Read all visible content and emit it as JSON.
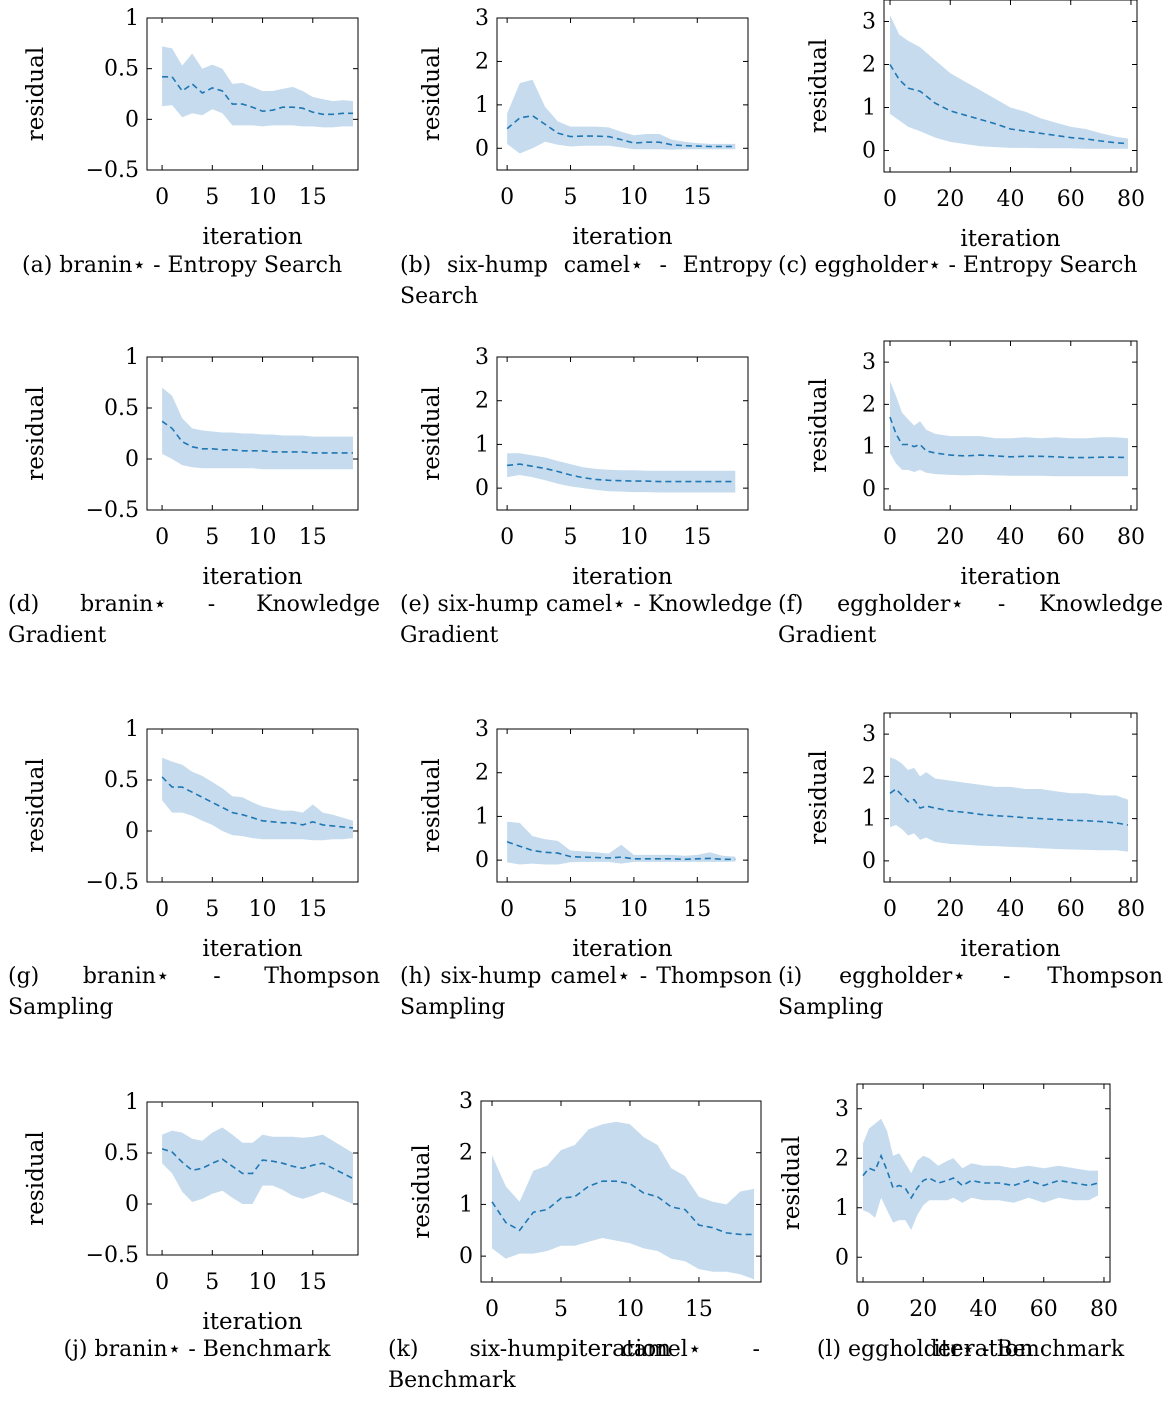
{
  "style": {
    "band_color": "#c6dcee",
    "line_color": "#1f77b4"
  },
  "chart_data": [
    {
      "id": "a",
      "type": "line",
      "caption": "(a) branin⋆ - Entropy Search",
      "xlabel": "iteration",
      "ylabel": "residual",
      "xlim": [
        -1.5,
        19.5
      ],
      "ylim": [
        -0.5,
        1
      ],
      "xticks": [
        0,
        5,
        10,
        15
      ],
      "yticks": [
        -0.5,
        0,
        0.5,
        1
      ],
      "ytick_labels": [
        "−0.5",
        "0",
        "0.5",
        "1"
      ],
      "xtick_labels": [
        "0",
        "5",
        "10",
        "15"
      ],
      "mean": [
        0.42,
        0.42,
        0.28,
        0.35,
        0.26,
        0.31,
        0.28,
        0.15,
        0.15,
        0.12,
        0.08,
        0.09,
        0.12,
        0.12,
        0.11,
        0.07,
        0.05,
        0.05,
        0.06,
        0.06
      ],
      "upper": [
        0.72,
        0.7,
        0.53,
        0.65,
        0.5,
        0.54,
        0.5,
        0.35,
        0.36,
        0.32,
        0.28,
        0.28,
        0.3,
        0.32,
        0.28,
        0.22,
        0.2,
        0.18,
        0.19,
        0.18
      ],
      "lower": [
        0.13,
        0.14,
        0.02,
        0.06,
        0.04,
        0.1,
        0.06,
        -0.06,
        -0.06,
        -0.06,
        -0.07,
        -0.06,
        -0.06,
        -0.06,
        -0.07,
        -0.07,
        -0.08,
        -0.08,
        -0.07,
        -0.07
      ]
    },
    {
      "id": "b",
      "type": "line",
      "caption": "(b) six-hump camel⋆ - Entropy Search",
      "xlabel": "iteration",
      "ylabel": "residual",
      "xlim": [
        -0.8,
        19
      ],
      "ylim": [
        -0.5,
        3
      ],
      "xticks": [
        0,
        5,
        10,
        15
      ],
      "yticks": [
        0,
        1,
        2,
        3
      ],
      "ytick_labels": [
        "0",
        "1",
        "2",
        "3"
      ],
      "xtick_labels": [
        "0",
        "5",
        "10",
        "15"
      ],
      "mean": [
        0.45,
        0.7,
        0.75,
        0.55,
        0.35,
        0.27,
        0.28,
        0.28,
        0.27,
        0.2,
        0.12,
        0.14,
        0.14,
        0.08,
        0.06,
        0.05,
        0.04,
        0.04,
        0.04
      ],
      "upper": [
        0.8,
        1.5,
        1.58,
        0.95,
        0.62,
        0.5,
        0.5,
        0.5,
        0.48,
        0.38,
        0.3,
        0.33,
        0.33,
        0.2,
        0.15,
        0.12,
        0.1,
        0.1,
        0.1
      ],
      "lower": [
        0.1,
        -0.12,
        0.0,
        0.15,
        0.08,
        0.04,
        0.06,
        0.06,
        0.06,
        0.02,
        -0.02,
        -0.02,
        -0.02,
        -0.03,
        -0.02,
        -0.02,
        -0.02,
        -0.02,
        -0.02
      ]
    },
    {
      "id": "c",
      "type": "line",
      "caption": "(c) eggholder⋆ - Entropy Search",
      "xlabel": "iteration",
      "ylabel": "residual",
      "xlim": [
        -2,
        82
      ],
      "ylim": [
        -0.5,
        3.5
      ],
      "xticks": [
        0,
        20,
        40,
        60,
        80
      ],
      "yticks": [
        0,
        1,
        2,
        3
      ],
      "ytick_labels": [
        "0",
        "1",
        "2",
        "3"
      ],
      "xtick_labels": [
        "0",
        "20",
        "40",
        "60",
        "80"
      ],
      "x": [
        0,
        3,
        6,
        10,
        15,
        20,
        25,
        30,
        35,
        40,
        45,
        50,
        55,
        60,
        65,
        70,
        75,
        79
      ],
      "mean": [
        2.0,
        1.65,
        1.45,
        1.38,
        1.1,
        0.92,
        0.82,
        0.72,
        0.62,
        0.5,
        0.45,
        0.4,
        0.35,
        0.3,
        0.27,
        0.22,
        0.18,
        0.16
      ],
      "upper": [
        3.15,
        2.7,
        2.55,
        2.4,
        2.1,
        1.8,
        1.6,
        1.4,
        1.2,
        1.0,
        0.9,
        0.75,
        0.65,
        0.55,
        0.5,
        0.4,
        0.32,
        0.28
      ],
      "lower": [
        0.85,
        0.7,
        0.55,
        0.45,
        0.3,
        0.2,
        0.15,
        0.1,
        0.08,
        0.06,
        0.06,
        0.05,
        0.05,
        0.05,
        0.04,
        0.04,
        0.04,
        0.04
      ]
    },
    {
      "id": "d",
      "type": "line",
      "caption": "(d) branin⋆ - Knowledge Gradient",
      "xlabel": "iteration",
      "ylabel": "residual",
      "xlim": [
        -1.5,
        19.5
      ],
      "ylim": [
        -0.5,
        1
      ],
      "xticks": [
        0,
        5,
        10,
        15
      ],
      "yticks": [
        -0.5,
        0,
        0.5,
        1
      ],
      "ytick_labels": [
        "−0.5",
        "0",
        "0.5",
        "1"
      ],
      "xtick_labels": [
        "0",
        "5",
        "10",
        "15"
      ],
      "mean": [
        0.37,
        0.3,
        0.17,
        0.12,
        0.1,
        0.1,
        0.09,
        0.09,
        0.08,
        0.08,
        0.08,
        0.07,
        0.07,
        0.07,
        0.07,
        0.06,
        0.06,
        0.06,
        0.06,
        0.06
      ],
      "upper": [
        0.7,
        0.62,
        0.4,
        0.3,
        0.28,
        0.27,
        0.26,
        0.26,
        0.25,
        0.25,
        0.24,
        0.24,
        0.23,
        0.23,
        0.23,
        0.22,
        0.22,
        0.22,
        0.22,
        0.22
      ],
      "lower": [
        0.05,
        0.0,
        -0.06,
        -0.08,
        -0.09,
        -0.09,
        -0.09,
        -0.09,
        -0.09,
        -0.09,
        -0.1,
        -0.1,
        -0.1,
        -0.1,
        -0.1,
        -0.1,
        -0.1,
        -0.1,
        -0.1,
        -0.1
      ]
    },
    {
      "id": "e",
      "type": "line",
      "caption": "(e) six-hump camel⋆ - Knowledge Gradient",
      "xlabel": "iteration",
      "ylabel": "residual",
      "xlim": [
        -0.8,
        19
      ],
      "ylim": [
        -0.5,
        3
      ],
      "xticks": [
        0,
        5,
        10,
        15
      ],
      "yticks": [
        0,
        1,
        2,
        3
      ],
      "ytick_labels": [
        "0",
        "1",
        "2",
        "3"
      ],
      "xtick_labels": [
        "0",
        "5",
        "10",
        "15"
      ],
      "mean": [
        0.52,
        0.55,
        0.5,
        0.45,
        0.38,
        0.3,
        0.24,
        0.2,
        0.18,
        0.17,
        0.16,
        0.16,
        0.15,
        0.15,
        0.15,
        0.15,
        0.15,
        0.15,
        0.15
      ],
      "upper": [
        0.8,
        0.8,
        0.75,
        0.7,
        0.62,
        0.55,
        0.48,
        0.44,
        0.42,
        0.41,
        0.41,
        0.4,
        0.4,
        0.4,
        0.4,
        0.4,
        0.4,
        0.4,
        0.4
      ],
      "lower": [
        0.25,
        0.3,
        0.25,
        0.18,
        0.1,
        0.04,
        0.0,
        -0.04,
        -0.07,
        -0.08,
        -0.09,
        -0.09,
        -0.1,
        -0.1,
        -0.1,
        -0.1,
        -0.1,
        -0.1,
        -0.1
      ]
    },
    {
      "id": "f",
      "type": "line",
      "caption": "(f) eggholder⋆ - Knowledge Gradient",
      "xlabel": "iteration",
      "ylabel": "residual",
      "xlim": [
        -2,
        82
      ],
      "ylim": [
        -0.5,
        3.5
      ],
      "xticks": [
        0,
        20,
        40,
        60,
        80
      ],
      "yticks": [
        0,
        1,
        2,
        3
      ],
      "ytick_labels": [
        "0",
        "1",
        "2",
        "3"
      ],
      "xtick_labels": [
        "0",
        "20",
        "40",
        "60",
        "80"
      ],
      "x": [
        0,
        2,
        4,
        6,
        8,
        10,
        12,
        15,
        20,
        25,
        30,
        35,
        40,
        45,
        50,
        55,
        60,
        65,
        70,
        75,
        79
      ],
      "mean": [
        1.7,
        1.3,
        1.05,
        1.05,
        1.0,
        1.05,
        0.9,
        0.85,
        0.8,
        0.78,
        0.8,
        0.78,
        0.76,
        0.77,
        0.77,
        0.76,
        0.74,
        0.74,
        0.75,
        0.75,
        0.74
      ],
      "upper": [
        2.55,
        2.2,
        1.8,
        1.65,
        1.5,
        1.6,
        1.4,
        1.3,
        1.25,
        1.25,
        1.25,
        1.2,
        1.2,
        1.22,
        1.2,
        1.22,
        1.2,
        1.2,
        1.22,
        1.22,
        1.2
      ],
      "lower": [
        0.85,
        0.6,
        0.45,
        0.45,
        0.4,
        0.45,
        0.38,
        0.35,
        0.33,
        0.32,
        0.33,
        0.32,
        0.31,
        0.31,
        0.31,
        0.3,
        0.3,
        0.3,
        0.3,
        0.3,
        0.3
      ]
    },
    {
      "id": "g",
      "type": "line",
      "caption": "(g) branin⋆ - Thompson Sampling",
      "xlabel": "iteration",
      "ylabel": "residual",
      "xlim": [
        -1.5,
        19.5
      ],
      "ylim": [
        -0.5,
        1
      ],
      "xticks": [
        0,
        5,
        10,
        15
      ],
      "yticks": [
        -0.5,
        0,
        0.5,
        1
      ],
      "ytick_labels": [
        "−0.5",
        "0",
        "0.5",
        "1"
      ],
      "xtick_labels": [
        "0",
        "5",
        "10",
        "15"
      ],
      "mean": [
        0.53,
        0.43,
        0.43,
        0.38,
        0.33,
        0.28,
        0.23,
        0.18,
        0.16,
        0.13,
        0.1,
        0.09,
        0.08,
        0.08,
        0.06,
        0.09,
        0.06,
        0.05,
        0.04,
        0.03
      ],
      "upper": [
        0.72,
        0.68,
        0.65,
        0.58,
        0.54,
        0.48,
        0.42,
        0.34,
        0.33,
        0.28,
        0.24,
        0.22,
        0.2,
        0.2,
        0.18,
        0.26,
        0.18,
        0.16,
        0.13,
        0.1
      ],
      "lower": [
        0.3,
        0.18,
        0.18,
        0.15,
        0.1,
        0.06,
        0.0,
        -0.04,
        -0.05,
        -0.07,
        -0.08,
        -0.08,
        -0.08,
        -0.08,
        -0.08,
        -0.09,
        -0.09,
        -0.08,
        -0.08,
        -0.07
      ]
    },
    {
      "id": "h",
      "type": "line",
      "caption": "(h) six-hump camel⋆ - Thompson Sampling",
      "xlabel": "iteration",
      "ylabel": "residual",
      "xlim": [
        -0.8,
        19
      ],
      "ylim": [
        -0.5,
        3
      ],
      "xticks": [
        0,
        5,
        10,
        15
      ],
      "yticks": [
        0,
        1,
        2,
        3
      ],
      "ytick_labels": [
        "0",
        "1",
        "2",
        "3"
      ],
      "xtick_labels": [
        "0",
        "5",
        "10",
        "15"
      ],
      "mean": [
        0.42,
        0.32,
        0.22,
        0.18,
        0.16,
        0.08,
        0.07,
        0.06,
        0.05,
        0.07,
        0.03,
        0.03,
        0.03,
        0.03,
        0.02,
        0.03,
        0.04,
        0.02,
        0.02
      ],
      "upper": [
        0.88,
        0.85,
        0.55,
        0.48,
        0.44,
        0.22,
        0.2,
        0.18,
        0.15,
        0.35,
        0.12,
        0.12,
        0.12,
        0.12,
        0.1,
        0.12,
        0.18,
        0.1,
        0.08
      ],
      "lower": [
        -0.05,
        -0.1,
        -0.08,
        -0.1,
        -0.1,
        -0.05,
        -0.04,
        -0.04,
        -0.04,
        -0.08,
        -0.04,
        -0.04,
        -0.04,
        -0.04,
        -0.04,
        -0.04,
        -0.04,
        -0.04,
        -0.03
      ]
    },
    {
      "id": "i",
      "type": "line",
      "caption": "(i) eggholder⋆ - Thompson Sampling",
      "xlabel": "iteration",
      "ylabel": "residual",
      "xlim": [
        -2,
        82
      ],
      "ylim": [
        -0.5,
        3.5
      ],
      "xticks": [
        0,
        20,
        40,
        60,
        80
      ],
      "yticks": [
        0,
        1,
        2,
        3
      ],
      "ytick_labels": [
        "0",
        "1",
        "2",
        "3"
      ],
      "xtick_labels": [
        "0",
        "20",
        "40",
        "60",
        "80"
      ],
      "x": [
        0,
        2,
        4,
        6,
        8,
        10,
        12,
        15,
        20,
        25,
        30,
        35,
        40,
        45,
        50,
        55,
        60,
        65,
        70,
        75,
        79
      ],
      "mean": [
        1.6,
        1.7,
        1.55,
        1.4,
        1.45,
        1.25,
        1.3,
        1.25,
        1.18,
        1.15,
        1.1,
        1.07,
        1.05,
        1.02,
        1.0,
        0.98,
        0.96,
        0.95,
        0.93,
        0.9,
        0.85
      ],
      "upper": [
        2.45,
        2.4,
        2.3,
        2.15,
        2.2,
        2.0,
        2.1,
        1.95,
        1.9,
        1.85,
        1.8,
        1.75,
        1.75,
        1.7,
        1.7,
        1.65,
        1.6,
        1.6,
        1.55,
        1.55,
        1.45
      ],
      "lower": [
        0.8,
        0.85,
        0.75,
        0.6,
        0.65,
        0.5,
        0.55,
        0.45,
        0.4,
        0.38,
        0.36,
        0.35,
        0.33,
        0.32,
        0.3,
        0.28,
        0.27,
        0.26,
        0.25,
        0.25,
        0.22
      ]
    },
    {
      "id": "j",
      "type": "line",
      "caption": "(j) branin⋆ - Benchmark",
      "xlabel": "iteration",
      "ylabel": "residual",
      "xlim": [
        -1.5,
        19.5
      ],
      "ylim": [
        -0.5,
        1
      ],
      "xticks": [
        0,
        5,
        10,
        15
      ],
      "yticks": [
        -0.5,
        0,
        0.5,
        1
      ],
      "ytick_labels": [
        "−0.5",
        "0",
        "0.5",
        "1"
      ],
      "xtick_labels": [
        "0",
        "5",
        "10",
        "15"
      ],
      "mean": [
        0.54,
        0.51,
        0.41,
        0.33,
        0.35,
        0.4,
        0.44,
        0.37,
        0.3,
        0.3,
        0.43,
        0.42,
        0.4,
        0.37,
        0.35,
        0.38,
        0.4,
        0.35,
        0.3,
        0.25
      ],
      "upper": [
        0.68,
        0.72,
        0.7,
        0.64,
        0.62,
        0.7,
        0.75,
        0.68,
        0.6,
        0.6,
        0.68,
        0.66,
        0.66,
        0.66,
        0.65,
        0.66,
        0.68,
        0.62,
        0.56,
        0.5
      ],
      "lower": [
        0.4,
        0.3,
        0.12,
        0.02,
        0.05,
        0.1,
        0.13,
        0.06,
        0.0,
        0.0,
        0.18,
        0.18,
        0.14,
        0.08,
        0.05,
        0.08,
        0.12,
        0.08,
        0.04,
        0.0
      ]
    },
    {
      "id": "k",
      "type": "line",
      "caption": "(k) six-hump camel⋆ - Benchmark",
      "xlabel": "iteration",
      "ylabel": "residual",
      "xlim": [
        -0.8,
        19.5
      ],
      "ylim": [
        -0.5,
        3
      ],
      "xticks": [
        0,
        5,
        10,
        15
      ],
      "yticks": [
        0,
        1,
        2,
        3
      ],
      "ytick_labels": [
        "0",
        "1",
        "2",
        "3"
      ],
      "xtick_labels": [
        "0",
        "5",
        "10",
        "15"
      ],
      "mean": [
        1.05,
        0.65,
        0.5,
        0.85,
        0.9,
        1.12,
        1.15,
        1.35,
        1.45,
        1.45,
        1.4,
        1.22,
        1.15,
        0.95,
        0.9,
        0.6,
        0.55,
        0.45,
        0.42,
        0.42
      ],
      "upper": [
        1.95,
        1.35,
        1.05,
        1.65,
        1.75,
        2.05,
        2.15,
        2.45,
        2.55,
        2.6,
        2.55,
        2.3,
        2.15,
        1.7,
        1.55,
        1.15,
        1.05,
        1.0,
        1.25,
        1.3
      ],
      "lower": [
        0.15,
        -0.05,
        0.05,
        0.05,
        0.1,
        0.2,
        0.2,
        0.28,
        0.35,
        0.3,
        0.25,
        0.15,
        0.1,
        -0.05,
        -0.1,
        -0.25,
        -0.3,
        -0.3,
        -0.35,
        -0.45
      ]
    },
    {
      "id": "l",
      "type": "line",
      "caption": "(l) eggholder⋆ - Benchmark",
      "xlabel": "iteration",
      "ylabel": "residual",
      "xlim": [
        -2,
        82
      ],
      "ylim": [
        -0.5,
        3.5
      ],
      "xticks": [
        0,
        20,
        40,
        60,
        80
      ],
      "yticks": [
        0,
        1,
        2,
        3
      ],
      "ytick_labels": [
        "0",
        "1",
        "2",
        "3"
      ],
      "xtick_labels": [
        "0",
        "20",
        "40",
        "60",
        "80"
      ],
      "x": [
        0,
        2,
        4,
        6,
        8,
        10,
        12,
        14,
        16,
        18,
        20,
        22,
        25,
        28,
        30,
        33,
        36,
        40,
        45,
        50,
        55,
        60,
        65,
        70,
        75,
        78
      ],
      "mean": [
        1.65,
        1.8,
        1.75,
        2.05,
        1.75,
        1.4,
        1.45,
        1.4,
        1.2,
        1.4,
        1.55,
        1.6,
        1.5,
        1.55,
        1.6,
        1.45,
        1.55,
        1.5,
        1.5,
        1.45,
        1.55,
        1.45,
        1.55,
        1.5,
        1.45,
        1.5
      ],
      "upper": [
        2.3,
        2.6,
        2.7,
        2.8,
        2.55,
        2.05,
        2.1,
        1.9,
        1.7,
        1.95,
        2.05,
        2.0,
        1.85,
        1.95,
        2.0,
        1.8,
        1.9,
        1.85,
        1.85,
        1.8,
        1.85,
        1.8,
        1.85,
        1.8,
        1.75,
        1.75
      ],
      "lower": [
        0.95,
        0.9,
        0.8,
        1.2,
        0.95,
        0.7,
        0.75,
        0.75,
        0.55,
        0.85,
        1.05,
        1.15,
        1.15,
        1.15,
        1.2,
        1.1,
        1.2,
        1.15,
        1.15,
        1.1,
        1.2,
        1.1,
        1.2,
        1.15,
        1.15,
        1.25
      ]
    }
  ]
}
